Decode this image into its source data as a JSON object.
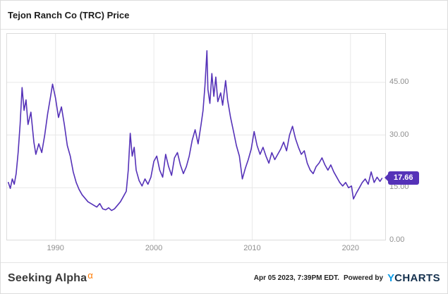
{
  "header": {
    "title": "Tejon Ranch Co (TRC) Price"
  },
  "chart_data": {
    "type": "line",
    "title": "Tejon Ranch Co (TRC) Price",
    "series_name": "TRC Price",
    "line_color": "#5532b8",
    "grid": true,
    "legend": "none",
    "y_axis_position": "right",
    "xlim": [
      1985.0,
      2023.6
    ],
    "ylim": [
      0,
      59
    ],
    "xticks": [
      1990,
      2000,
      2010,
      2020
    ],
    "yticks": [
      0,
      15,
      30,
      45
    ],
    "ytick_labels": [
      "0.00",
      "15.00",
      "30.00",
      "45.00"
    ],
    "last_value": 17.66,
    "last_value_label": "17.66",
    "points": [
      [
        1985.2,
        16.5
      ],
      [
        1985.4,
        14.8
      ],
      [
        1985.6,
        17.5
      ],
      [
        1985.8,
        16
      ],
      [
        1986,
        19
      ],
      [
        1986.2,
        25
      ],
      [
        1986.4,
        33
      ],
      [
        1986.6,
        43.5
      ],
      [
        1986.8,
        37
      ],
      [
        1987,
        40
      ],
      [
        1987.2,
        33
      ],
      [
        1987.5,
        36.5
      ],
      [
        1987.8,
        28
      ],
      [
        1988,
        24.5
      ],
      [
        1988.3,
        27.5
      ],
      [
        1988.6,
        25
      ],
      [
        1988.9,
        30
      ],
      [
        1989.2,
        36
      ],
      [
        1989.5,
        41
      ],
      [
        1989.7,
        44.5
      ],
      [
        1990,
        40.5
      ],
      [
        1990.3,
        35
      ],
      [
        1990.6,
        38
      ],
      [
        1990.9,
        33
      ],
      [
        1991.2,
        27
      ],
      [
        1991.5,
        24
      ],
      [
        1991.8,
        19.5
      ],
      [
        1992.1,
        16.5
      ],
      [
        1992.4,
        14.5
      ],
      [
        1992.7,
        13
      ],
      [
        1993,
        12
      ],
      [
        1993.3,
        11
      ],
      [
        1993.6,
        10.5
      ],
      [
        1993.9,
        10
      ],
      [
        1994.2,
        9.5
      ],
      [
        1994.5,
        10.5
      ],
      [
        1994.8,
        9
      ],
      [
        1995.1,
        8.7
      ],
      [
        1995.4,
        9.3
      ],
      [
        1995.7,
        8.5
      ],
      [
        1996,
        9
      ],
      [
        1996.3,
        10
      ],
      [
        1996.6,
        11
      ],
      [
        1996.9,
        12.5
      ],
      [
        1997.2,
        14
      ],
      [
        1997.4,
        20
      ],
      [
        1997.6,
        30.5
      ],
      [
        1997.8,
        24
      ],
      [
        1998,
        26.5
      ],
      [
        1998.2,
        20
      ],
      [
        1998.5,
        17
      ],
      [
        1998.8,
        15.5
      ],
      [
        1999.1,
        17.5
      ],
      [
        1999.4,
        16
      ],
      [
        1999.7,
        18
      ],
      [
        2000,
        22.5
      ],
      [
        2000.3,
        24
      ],
      [
        2000.6,
        20
      ],
      [
        2000.9,
        18
      ],
      [
        2001.2,
        24.5
      ],
      [
        2001.5,
        21
      ],
      [
        2001.8,
        18.5
      ],
      [
        2002.1,
        23.5
      ],
      [
        2002.4,
        25
      ],
      [
        2002.7,
        21.5
      ],
      [
        2003,
        19
      ],
      [
        2003.3,
        21
      ],
      [
        2003.6,
        24
      ],
      [
        2003.9,
        28.5
      ],
      [
        2004.2,
        31.5
      ],
      [
        2004.5,
        27.5
      ],
      [
        2004.8,
        33
      ],
      [
        2005,
        37
      ],
      [
        2005.2,
        44
      ],
      [
        2005.4,
        54
      ],
      [
        2005.5,
        43
      ],
      [
        2005.7,
        39
      ],
      [
        2005.9,
        47.5
      ],
      [
        2006.1,
        41
      ],
      [
        2006.3,
        46.5
      ],
      [
        2006.5,
        39.5
      ],
      [
        2006.8,
        42
      ],
      [
        2007,
        38.5
      ],
      [
        2007.3,
        45.5
      ],
      [
        2007.5,
        40
      ],
      [
        2007.8,
        35
      ],
      [
        2008.1,
        31
      ],
      [
        2008.4,
        27
      ],
      [
        2008.7,
        24
      ],
      [
        2009,
        17.5
      ],
      [
        2009.3,
        20.5
      ],
      [
        2009.6,
        23
      ],
      [
        2009.9,
        26
      ],
      [
        2010.2,
        31
      ],
      [
        2010.5,
        27
      ],
      [
        2010.8,
        24.5
      ],
      [
        2011.1,
        26.5
      ],
      [
        2011.4,
        24
      ],
      [
        2011.7,
        22
      ],
      [
        2012,
        25
      ],
      [
        2012.3,
        23
      ],
      [
        2012.6,
        24.5
      ],
      [
        2012.9,
        26
      ],
      [
        2013.2,
        28
      ],
      [
        2013.5,
        25.5
      ],
      [
        2013.8,
        30
      ],
      [
        2014.1,
        32.5
      ],
      [
        2014.4,
        29
      ],
      [
        2014.7,
        26.5
      ],
      [
        2015,
        24.5
      ],
      [
        2015.3,
        25.5
      ],
      [
        2015.6,
        22
      ],
      [
        2015.9,
        20
      ],
      [
        2016.2,
        19
      ],
      [
        2016.5,
        21
      ],
      [
        2016.8,
        22
      ],
      [
        2017.1,
        23.5
      ],
      [
        2017.4,
        21.5
      ],
      [
        2017.7,
        20
      ],
      [
        2018,
        21.5
      ],
      [
        2018.3,
        19.5
      ],
      [
        2018.6,
        18
      ],
      [
        2018.9,
        16.5
      ],
      [
        2019.2,
        15.5
      ],
      [
        2019.5,
        16.5
      ],
      [
        2019.8,
        15
      ],
      [
        2020.1,
        15.5
      ],
      [
        2020.3,
        11.8
      ],
      [
        2020.6,
        13.5
      ],
      [
        2020.9,
        15
      ],
      [
        2021.2,
        16.5
      ],
      [
        2021.5,
        17.5
      ],
      [
        2021.8,
        16
      ],
      [
        2022.1,
        19.5
      ],
      [
        2022.4,
        16.5
      ],
      [
        2022.7,
        18
      ],
      [
        2023,
        16.8
      ],
      [
        2023.2,
        17.66
      ]
    ],
    "colors": {
      "line": "#5532b8",
      "badge_bg": "#5532b8",
      "badge_text": "#ffffff",
      "gridline": "#e8e8e8",
      "tick_text": "#8f8f8f"
    }
  },
  "footer": {
    "brand": "Seeking Alpha",
    "brand_alpha": "α",
    "brand_alpha_color": "#ff7a00",
    "timestamp": "Apr 05 2023, 7:39PM EDT.",
    "powered_by": "Powered by",
    "ycharts_y": "Y",
    "ycharts_rest": "CHARTS",
    "ycharts_y_color": "#0b9ce8"
  }
}
